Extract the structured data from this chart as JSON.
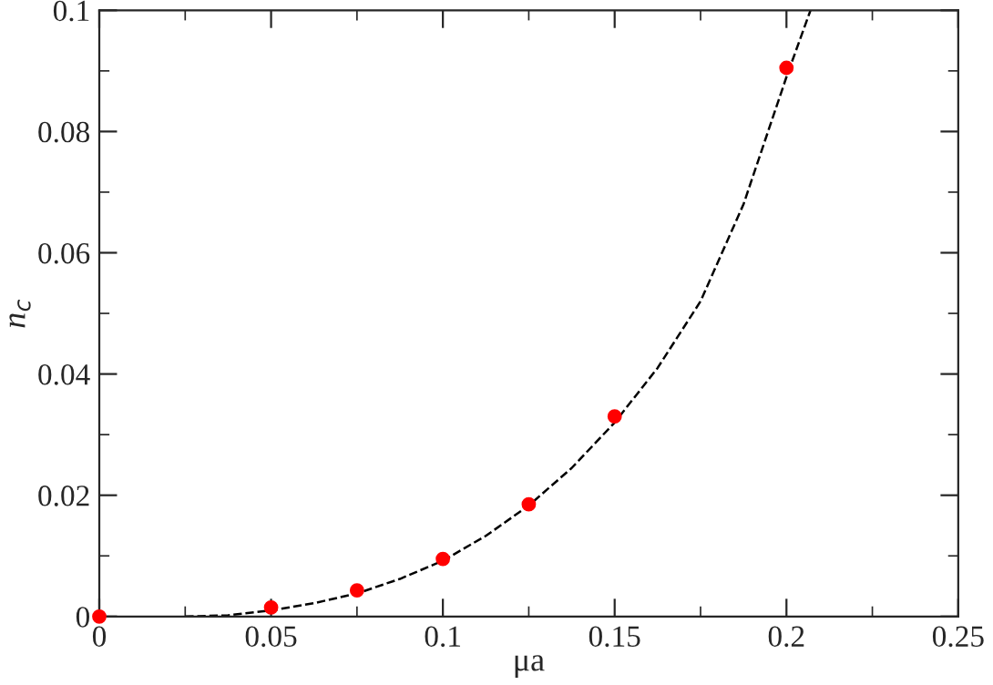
{
  "chart_data": {
    "type": "scatter",
    "xlabel": "μa",
    "ylabel": "n$_{c}$",
    "xlim": [
      0,
      0.25
    ],
    "ylim": [
      0,
      0.1
    ],
    "xticks": [
      0,
      0.05,
      0.1,
      0.15,
      0.2,
      0.25
    ],
    "yticks": [
      0,
      0.02,
      0.04,
      0.06,
      0.08,
      0.1
    ],
    "grid": false,
    "marker": "circle",
    "series": [
      {
        "color": "#ff0000",
        "x": [
          0,
          0.05,
          0.075,
          0.1,
          0.125,
          0.15,
          0.2
        ],
        "values": [
          0,
          0.0015,
          0.0043,
          0.0095,
          0.0185,
          0.033,
          0.0905
        ]
      },
      {
        "type": "line",
        "color": "#000000",
        "line_style": "dashed",
        "marker": "none",
        "x": [
          0.025,
          0.0375,
          0.05,
          0.0625,
          0.075,
          0.0875,
          0.1,
          0.1125,
          0.125,
          0.1375,
          0.15,
          0.1625,
          0.175,
          0.1875,
          0.2,
          0.207
        ],
        "values": [
          0,
          0.0002,
          0.001,
          0.0022,
          0.0038,
          0.0062,
          0.0092,
          0.0133,
          0.0183,
          0.0245,
          0.032,
          0.041,
          0.052,
          0.068,
          0.089,
          0.1
        ]
      }
    ]
  }
}
